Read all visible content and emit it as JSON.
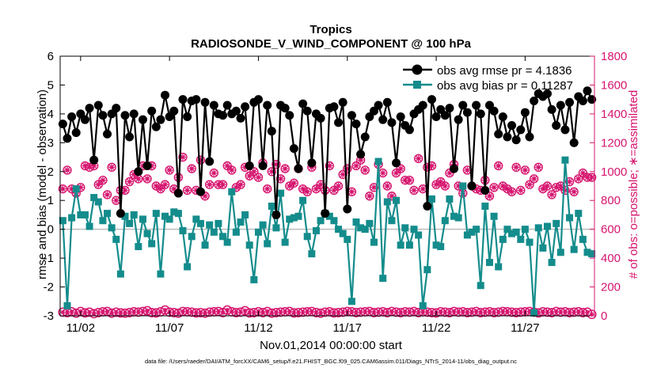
{
  "chart_data": {
    "type": "line",
    "title": "Tropics",
    "subtitle": "RADIOSONDE_V_WIND_COMPONENT @ 100 hPa",
    "xlabel": "Nov.01,2014 00:00:00 start",
    "ylabel_left": "rmse and bias (model - observation)",
    "ylabel_right": "# of obs: o=possible; ∗=assimilated",
    "footer": "data file: /Users/raeder/DAI/ATM_forcXX/CAM6_setup/f.e21.FHIST_BGC.f09_025.CAM6assim.011/Diags_NTrS_2014-11/obs_diag_output.nc",
    "x_range": [
      0.85,
      30.9
    ],
    "x_ticks": [
      {
        "x": 2,
        "label": "11/02"
      },
      {
        "x": 7,
        "label": "11/07"
      },
      {
        "x": 12,
        "label": "11/12"
      },
      {
        "x": 17,
        "label": "11/17"
      },
      {
        "x": 22,
        "label": "11/22"
      },
      {
        "x": 27,
        "label": "11/27"
      }
    ],
    "y_left_range": [
      -3,
      6
    ],
    "y_left_ticks": [
      -3,
      -2,
      -1,
      0,
      1,
      2,
      3,
      4,
      5,
      6
    ],
    "y_right_range": [
      0,
      1800
    ],
    "y_right_ticks": [
      0,
      200,
      400,
      600,
      800,
      1000,
      1200,
      1400,
      1600,
      1800
    ],
    "grid": false,
    "legend_position": "top-right",
    "colors": {
      "rmse": "#000000",
      "bias": "#148c8c",
      "count": "#d6146e",
      "zero_line": "#bdbdbd"
    },
    "x": [
      1.0,
      1.25,
      1.5,
      1.75,
      2.0,
      2.25,
      2.5,
      2.75,
      3.0,
      3.25,
      3.5,
      3.75,
      4.0,
      4.25,
      4.5,
      4.75,
      5.0,
      5.25,
      5.5,
      5.75,
      6.0,
      6.25,
      6.5,
      6.75,
      7.0,
      7.25,
      7.5,
      7.75,
      8.0,
      8.25,
      8.5,
      8.75,
      9.0,
      9.25,
      9.5,
      9.75,
      10.0,
      10.25,
      10.5,
      10.75,
      11.0,
      11.25,
      11.5,
      11.75,
      12.0,
      12.25,
      12.5,
      12.75,
      13.0,
      13.25,
      13.5,
      13.75,
      14.0,
      14.25,
      14.5,
      14.75,
      15.0,
      15.25,
      15.5,
      15.75,
      16.0,
      16.25,
      16.5,
      16.75,
      17.0,
      17.25,
      17.5,
      17.75,
      18.0,
      18.25,
      18.5,
      18.75,
      19.0,
      19.25,
      19.5,
      19.75,
      20.0,
      20.25,
      20.5,
      20.75,
      21.0,
      21.25,
      21.5,
      21.75,
      22.0,
      22.25,
      22.5,
      22.75,
      23.0,
      23.25,
      23.5,
      23.75,
      24.0,
      24.25,
      24.5,
      24.75,
      25.0,
      25.25,
      25.5,
      25.75,
      26.0,
      26.25,
      26.5,
      26.75,
      27.0,
      27.25,
      27.5,
      27.75,
      28.0,
      28.25,
      28.5,
      28.75,
      29.0,
      29.25,
      29.5,
      29.75,
      30.0,
      30.25,
      30.5,
      30.75
    ],
    "series": [
      {
        "name": "obs avg rmse pr = 4.1836",
        "axis": "left",
        "marker": "circle",
        "values": [
          3.65,
          3.15,
          3.9,
          3.35,
          4.0,
          3.8,
          4.2,
          2.4,
          4.3,
          3.95,
          3.3,
          4.0,
          4.2,
          0.55,
          3.95,
          3.2,
          4.0,
          2.0,
          3.8,
          2.2,
          4.1,
          3.55,
          3.8,
          4.65,
          3.9,
          4.1,
          1.25,
          4.5,
          3.9,
          4.45,
          4.5,
          1.3,
          4.4,
          2.35,
          4.3,
          4.0,
          3.95,
          4.3,
          4.0,
          4.1,
          3.85,
          4.25,
          2.2,
          4.4,
          4.5,
          2.2,
          4.3,
          3.4,
          0.5,
          4.3,
          4.2,
          3.95,
          2.8,
          2.1,
          4.35,
          4.1,
          2.3,
          4.0,
          3.85,
          0.55,
          4.2,
          4.25,
          3.7,
          4.4,
          0.7,
          3.95,
          3.65,
          2.6,
          3.2,
          3.9,
          4.1,
          4.3,
          3.8,
          4.4,
          3.7,
          2.3,
          3.9,
          3.6,
          3.45,
          4.0,
          4.15,
          4.3,
          0.8,
          4.5,
          3.9,
          4.15,
          3.95,
          4.2,
          2.1,
          3.8,
          4.3,
          4.05,
          1.5,
          4.3,
          4.0,
          1.35,
          4.3,
          4.1,
          3.3,
          3.9,
          3.2,
          3.6,
          3.1,
          3.45,
          4.05,
          3.2,
          4.45,
          4.7,
          4.6,
          4.7,
          4.15,
          3.6,
          4.3,
          3.45,
          4.4,
          3.0,
          4.6,
          4.45,
          4.8,
          4.5
        ]
      },
      {
        "name": "obs avg bias pr = 0.11287",
        "axis": "left",
        "marker": "square",
        "values": [
          0.3,
          -2.65,
          0.4,
          1.4,
          0.5,
          0.5,
          0.1,
          1.1,
          0.95,
          0.3,
          0.55,
          0.05,
          -0.35,
          -1.55,
          0.45,
          0.2,
          0.5,
          -0.6,
          0.35,
          -0.15,
          -0.5,
          0.55,
          -1.55,
          0.45,
          0.35,
          0.6,
          0.55,
          -0.05,
          -1.3,
          -0.25,
          0.35,
          0.2,
          -0.55,
          0.15,
          -0.1,
          0.2,
          -0.25,
          -0.45,
          1.3,
          -0.1,
          0.25,
          0.5,
          -0.55,
          -1.75,
          -0.1,
          0.15,
          -0.5,
          0.8,
          0.05,
          1.25,
          -0.45,
          0.35,
          0.4,
          0.45,
          1.0,
          -0.25,
          -0.85,
          -0.05,
          0.3,
          0.55,
          0.45,
          0.3,
          0.0,
          -0.15,
          -0.35,
          -2.5,
          0.25,
          0.05,
          0.0,
          0.2,
          -0.45,
          2.35,
          -1.7,
          0.95,
          0.3,
          1.0,
          -0.55,
          0.05,
          -0.55,
          0.0,
          -0.2,
          -2.65,
          -1.4,
          1.05,
          -0.55,
          -0.6,
          0.3,
          1.05,
          0.45,
          0.4,
          1.5,
          -0.2,
          -0.1,
          0.0,
          -1.95,
          0.8,
          -1.15,
          0.45,
          -1.3,
          -0.35,
          0.0,
          -0.15,
          -0.1,
          -0.35,
          0.0,
          -0.45,
          -2.9,
          0.05,
          -0.65,
          0.1,
          -1.15,
          0.2,
          -0.8,
          2.4,
          0.4,
          -0.7,
          0.55,
          -0.35,
          -0.8,
          -0.85
        ]
      },
      {
        "name": "possible",
        "axis": "right",
        "marker": "circle-o",
        "values": [
          25,
          22,
          28,
          18,
          30,
          20,
          25,
          15,
          22,
          28,
          30,
          18,
          25,
          20,
          18,
          22,
          28,
          25,
          30,
          35,
          22,
          20,
          28,
          40,
          25,
          22,
          18,
          30,
          28,
          25,
          20,
          22,
          18,
          25,
          28,
          30,
          22,
          40,
          28,
          22,
          25,
          35,
          20,
          22,
          28,
          22,
          30,
          18,
          22,
          25,
          28,
          30,
          20,
          22,
          25,
          28,
          30,
          22,
          18,
          25,
          28,
          20,
          22,
          25,
          30,
          28,
          22,
          25,
          28,
          30,
          22,
          25,
          28,
          22,
          30,
          25,
          22,
          28,
          25,
          30,
          22,
          28,
          25,
          22,
          20,
          28,
          25,
          22,
          30,
          25,
          28,
          22,
          25,
          30,
          22,
          25,
          28,
          22,
          25,
          30,
          28,
          25,
          22,
          25,
          28,
          30,
          25,
          20,
          28,
          25,
          22,
          30,
          25,
          28,
          22,
          25,
          28,
          22,
          25,
          10
        ]
      },
      {
        "name": "assimilated",
        "axis": "right",
        "marker": "star",
        "values": [
          880,
          1010,
          880,
          850,
          890,
          1040,
          1030,
          1040,
          910,
          940,
          840,
          1030,
          800,
          870,
          870,
          930,
          980,
          950,
          1040,
          950,
          1040,
          900,
          880,
          910,
          1010,
          880,
          960,
          1100,
          870,
          1020,
          870,
          1080,
          830,
          910,
          990,
          910,
          910,
          1040,
          1010,
          890,
          910,
          1030,
          970,
          1000,
          960,
          1060,
          880,
          1000,
          1050,
          950,
          1020,
          900,
          920,
          1020,
          880,
          860,
          1030,
          880,
          910,
          870,
          1040,
          870,
          900,
          980,
          1020,
          860,
          1040,
          1080,
          1010,
          830,
          890,
          1050,
          990,
          900,
          830,
          990,
          1020,
          940,
          940,
          870,
          1090,
          880,
          1030,
          1040,
          910,
          930,
          900,
          990,
          1050,
          900,
          850,
          1010,
          900,
          880,
          870,
          940,
          830,
          890,
          1040,
          900,
          880,
          860,
          1030,
          870,
          1010,
          910,
          950,
          1030,
          880,
          900,
          840,
          890,
          900,
          870,
          930,
          860,
          950,
          990,
          960,
          960
        ]
      }
    ]
  }
}
